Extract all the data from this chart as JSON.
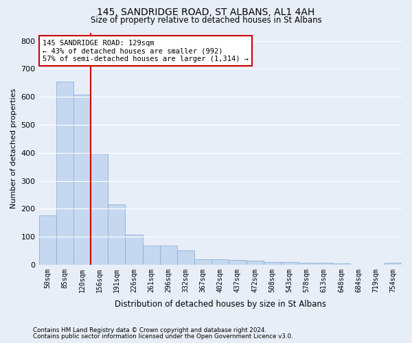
{
  "title1": "145, SANDRIDGE ROAD, ST ALBANS, AL1 4AH",
  "title2": "Size of property relative to detached houses in St Albans",
  "xlabel": "Distribution of detached houses by size in St Albans",
  "ylabel": "Number of detached properties",
  "footnote1": "Contains HM Land Registry data © Crown copyright and database right 2024.",
  "footnote2": "Contains public sector information licensed under the Open Government Licence v3.0.",
  "bar_labels": [
    "50sqm",
    "85sqm",
    "120sqm",
    "156sqm",
    "191sqm",
    "226sqm",
    "261sqm",
    "296sqm",
    "332sqm",
    "367sqm",
    "402sqm",
    "437sqm",
    "472sqm",
    "508sqm",
    "543sqm",
    "578sqm",
    "613sqm",
    "648sqm",
    "684sqm",
    "719sqm",
    "754sqm"
  ],
  "bar_values": [
    175,
    655,
    608,
    400,
    215,
    108,
    68,
    68,
    50,
    20,
    18,
    16,
    13,
    10,
    9,
    8,
    8,
    5,
    0,
    0,
    7
  ],
  "bar_color": "#c5d8f0",
  "bar_edge_color": "#8ab0d8",
  "plot_bg_color": "#e8eef8",
  "fig_bg_color": "#e8eef8",
  "grid_color": "#ffffff",
  "property_line_x": 2.5,
  "annotation_text1": "145 SANDRIDGE ROAD: 129sqm",
  "annotation_text2": "← 43% of detached houses are smaller (992)",
  "annotation_text3": "57% of semi-detached houses are larger (1,314) →",
  "annotation_box_color": "#ffffff",
  "annotation_border_color": "#cc0000",
  "red_line_color": "#cc0000",
  "ylim": [
    0,
    830
  ],
  "yticks": [
    0,
    100,
    200,
    300,
    400,
    500,
    600,
    700,
    800
  ]
}
